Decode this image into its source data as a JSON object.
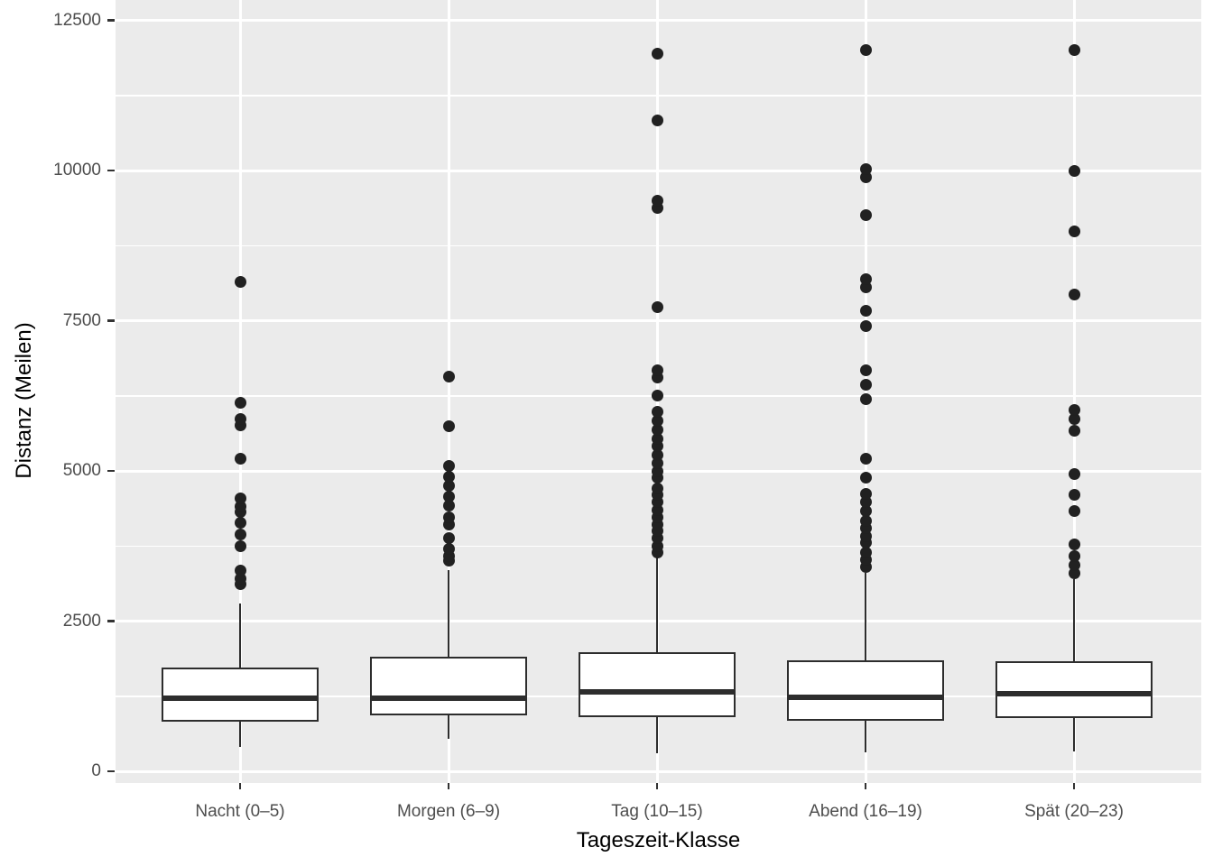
{
  "chart_data": {
    "type": "boxplot",
    "title": "",
    "xlabel": "Tageszeit-Klasse",
    "ylabel": "Distanz (Meilen)",
    "y_ticks": [
      0,
      2500,
      5000,
      7500,
      10000,
      12500
    ],
    "y_minor_ticks": [
      1250,
      3750,
      6250,
      8750,
      11250
    ],
    "ylim": [
      -195,
      12840
    ],
    "grid": "white major+minor horizontal lines and white vertical line per category on grey panel",
    "legend": "none",
    "categories": [
      "Nacht (0–5)",
      "Morgen (6–9)",
      "Tag (10–15)",
      "Abend (16–19)",
      "Spät (20–23)"
    ],
    "series": [
      {
        "name": "Nacht (0–5)",
        "whisker_low": 400,
        "q1": 825,
        "median": 1220,
        "q3": 1725,
        "whisker_high": 2800,
        "outliers": [
          3120,
          3200,
          3340,
          3750,
          3940,
          4130,
          4320,
          4400,
          4540,
          5200,
          5760,
          5870,
          6130,
          8150
        ]
      },
      {
        "name": "Morgen (6–9)",
        "whisker_low": 535,
        "q1": 935,
        "median": 1220,
        "q3": 1910,
        "whisker_high": 3350,
        "outliers": [
          3500,
          3580,
          3700,
          3880,
          4100,
          4230,
          4420,
          4570,
          4745,
          4895,
          5090,
          5740,
          6570
        ]
      },
      {
        "name": "Tag (10–15)",
        "whisker_low": 300,
        "q1": 900,
        "median": 1315,
        "q3": 1985,
        "whisker_high": 3560,
        "outliers": [
          3640,
          3750,
          3880,
          4000,
          4110,
          4230,
          4350,
          4480,
          4600,
          4700,
          4880,
          5000,
          5130,
          5260,
          5420,
          5530,
          5680,
          5830,
          5980,
          6260,
          6550,
          6680,
          7720,
          9370,
          9490,
          10830,
          11950
        ]
      },
      {
        "name": "Abend (16–19)",
        "whisker_low": 310,
        "q1": 835,
        "median": 1225,
        "q3": 1850,
        "whisker_high": 3310,
        "outliers": [
          3400,
          3520,
          3640,
          3810,
          3910,
          4040,
          4160,
          4330,
          4480,
          4610,
          4890,
          5200,
          6190,
          6430,
          6670,
          7410,
          7660,
          8060,
          8190,
          9260,
          9890,
          10020,
          12000
        ]
      },
      {
        "name": "Spät (20–23)",
        "whisker_low": 325,
        "q1": 885,
        "median": 1285,
        "q3": 1825,
        "whisker_high": 3200,
        "outliers": [
          3290,
          3430,
          3580,
          3780,
          4330,
          4600,
          4950,
          5670,
          5870,
          6010,
          7930,
          8990,
          10000,
          12000
        ]
      }
    ]
  },
  "colors": {
    "panel_bg": "#EBEBEB",
    "grid": "#FFFFFF",
    "box_border": "#2D2D2D",
    "box_fill": "#FFFFFF",
    "outlier_point": "#212121",
    "tick_label": "#4D4D4D",
    "axis_title": "#000000"
  }
}
